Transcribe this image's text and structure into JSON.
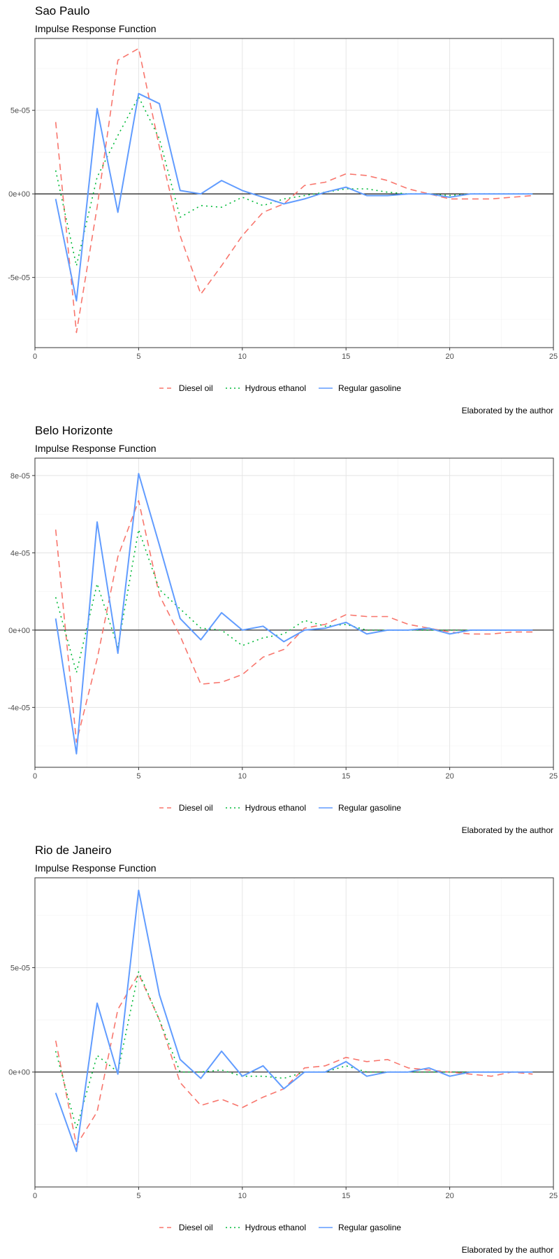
{
  "caption": "Elaborated by the author",
  "legend": [
    {
      "label": "Diesel oil",
      "color": "#F8766D",
      "dash": "dashed"
    },
    {
      "label": "Hydrous ethanol",
      "color": "#00BA38",
      "dash": "dotted"
    },
    {
      "label": "Regular gasoline",
      "color": "#619CFF",
      "dash": "solid"
    }
  ],
  "chart_data": [
    {
      "type": "line",
      "title": "Sao Paulo",
      "subtitle": "Impulse Response Function",
      "xlabel": "",
      "ylabel": "",
      "xlim": [
        0,
        25
      ],
      "ylim": [
        -9.2e-05,
        9.3e-05
      ],
      "x_ticks": [
        0,
        5,
        10,
        15,
        20,
        25
      ],
      "y_ticks": [
        -5e-05,
        0,
        5e-05
      ],
      "y_tick_labels": [
        "-5e-05",
        "0e+00",
        "5e-05"
      ],
      "x": [
        1,
        2,
        3,
        4,
        5,
        6,
        7,
        8,
        9,
        10,
        11,
        12,
        13,
        14,
        15,
        16,
        17,
        18,
        19,
        20,
        21,
        22,
        23,
        24
      ],
      "series": [
        {
          "name": "Diesel oil",
          "values": [
            4.3e-05,
            -8.3e-05,
            -8e-06,
            8e-05,
            8.7e-05,
            2.8e-05,
            -2.5e-05,
            -6e-05,
            -4.3e-05,
            -2.5e-05,
            -1.1e-05,
            -6e-06,
            5e-06,
            7e-06,
            1.2e-05,
            1.1e-05,
            8e-06,
            3e-06,
            0.0,
            -3e-06,
            -3e-06,
            -3e-06,
            -2e-06,
            -1e-06
          ]
        },
        {
          "name": "Hydrous ethanol",
          "values": [
            1.4e-05,
            -4.3e-05,
            1e-05,
            3.5e-05,
            5.8e-05,
            3.3e-05,
            -1.4e-05,
            -7e-06,
            -8e-06,
            -2e-06,
            -7e-06,
            -3e-06,
            -1e-06,
            1e-06,
            3e-06,
            3e-06,
            1e-06,
            0.0,
            0.0,
            -1e-06,
            0.0,
            0.0,
            0.0,
            0.0
          ]
        },
        {
          "name": "Regular gasoline",
          "values": [
            -3e-06,
            -6.4e-05,
            5.1e-05,
            -1.1e-05,
            6e-05,
            5.4e-05,
            2e-06,
            0.0,
            8e-06,
            2e-06,
            -2e-06,
            -6e-06,
            -3e-06,
            1e-06,
            4e-06,
            -1e-06,
            -1e-06,
            0.0,
            0.0,
            -2e-06,
            0.0,
            0.0,
            0.0,
            0.0
          ]
        }
      ]
    },
    {
      "type": "line",
      "title": "Belo Horizonte",
      "subtitle": "Impulse Response Function",
      "xlabel": "",
      "ylabel": "",
      "xlim": [
        0,
        25
      ],
      "ylim": [
        -7.1e-05,
        8.9e-05
      ],
      "x_ticks": [
        0,
        5,
        10,
        15,
        20,
        25
      ],
      "y_ticks": [
        -4e-05,
        0,
        4e-05,
        8e-05
      ],
      "y_tick_labels": [
        "-4e-05",
        "0e+00",
        "4e-05",
        "8e-05"
      ],
      "x": [
        1,
        2,
        3,
        4,
        5,
        6,
        7,
        8,
        9,
        10,
        11,
        12,
        13,
        14,
        15,
        16,
        17,
        18,
        19,
        20,
        21,
        22,
        23,
        24
      ],
      "series": [
        {
          "name": "Diesel oil",
          "values": [
            5.2e-05,
            -5.8e-05,
            -1.5e-05,
            3.8e-05,
            6.7e-05,
            1.8e-05,
            -3e-06,
            -2.8e-05,
            -2.7e-05,
            -2.3e-05,
            -1.4e-05,
            -1e-05,
            1e-06,
            3e-06,
            8e-06,
            7e-06,
            7e-06,
            3e-06,
            1e-06,
            -1e-06,
            -2e-06,
            -2e-06,
            -1e-06,
            -1e-06
          ]
        },
        {
          "name": "Hydrous ethanol",
          "values": [
            1.7e-05,
            -2.2e-05,
            2.4e-05,
            -9e-06,
            5.2e-05,
            2.1e-05,
            1.1e-05,
            1e-06,
            0.0,
            -8e-06,
            -4e-06,
            -2e-06,
            5e-06,
            2e-06,
            3e-06,
            0.0,
            0.0,
            0.0,
            0.0,
            0.0,
            0.0,
            0.0,
            0.0,
            0.0
          ]
        },
        {
          "name": "Regular gasoline",
          "values": [
            6e-06,
            -6.4e-05,
            5.6e-05,
            -1.2e-05,
            8.1e-05,
            4.4e-05,
            6e-06,
            -5e-06,
            9e-06,
            0.0,
            2e-06,
            -6e-06,
            0.0,
            1e-06,
            4e-06,
            -2e-06,
            0.0,
            0.0,
            1e-06,
            -2e-06,
            0.0,
            0.0,
            0.0,
            0.0
          ]
        }
      ]
    },
    {
      "type": "line",
      "title": "Rio de Janeiro",
      "subtitle": "Impulse Response Function",
      "xlabel": "",
      "ylabel": "",
      "xlim": [
        0,
        25
      ],
      "ylim": [
        -5.5e-05,
        9.3e-05
      ],
      "x_ticks": [
        0,
        5,
        10,
        15,
        20,
        25
      ],
      "y_ticks": [
        0,
        5e-05
      ],
      "y_tick_labels": [
        "0e+00",
        "5e-05"
      ],
      "x": [
        1,
        2,
        3,
        4,
        5,
        6,
        7,
        8,
        9,
        10,
        11,
        12,
        13,
        14,
        15,
        16,
        17,
        18,
        19,
        20,
        21,
        22,
        23,
        24
      ],
      "series": [
        {
          "name": "Diesel oil",
          "values": [
            1.5e-05,
            -3.5e-05,
            -1.9e-05,
            3e-05,
            4.7e-05,
            2.5e-05,
            -5e-06,
            -1.6e-05,
            -1.3e-05,
            -1.7e-05,
            -1.2e-05,
            -8e-06,
            2e-06,
            3e-06,
            7e-06,
            5e-06,
            6e-06,
            2e-06,
            1e-06,
            0.0,
            -1e-06,
            -2e-06,
            0.0,
            -1e-06
          ]
        },
        {
          "name": "Hydrous ethanol",
          "values": [
            1e-05,
            -2.7e-05,
            8e-06,
            0.0,
            4.8e-05,
            2.5e-05,
            0.0,
            0.0,
            1e-06,
            -2e-06,
            -2e-06,
            -3e-06,
            0.0,
            0.0,
            3e-06,
            0.0,
            0.0,
            0.0,
            0.0,
            0.0,
            0.0,
            0.0,
            0.0,
            0.0
          ]
        },
        {
          "name": "Regular gasoline",
          "values": [
            -1e-05,
            -3.8e-05,
            3.3e-05,
            -1e-06,
            8.7e-05,
            3.7e-05,
            6e-06,
            -3e-06,
            1e-05,
            -2e-06,
            3e-06,
            -8e-06,
            0.0,
            0.0,
            5e-06,
            -2e-06,
            0.0,
            0.0,
            2e-06,
            -2e-06,
            0.0,
            0.0,
            0.0,
            0.0
          ]
        }
      ]
    }
  ]
}
